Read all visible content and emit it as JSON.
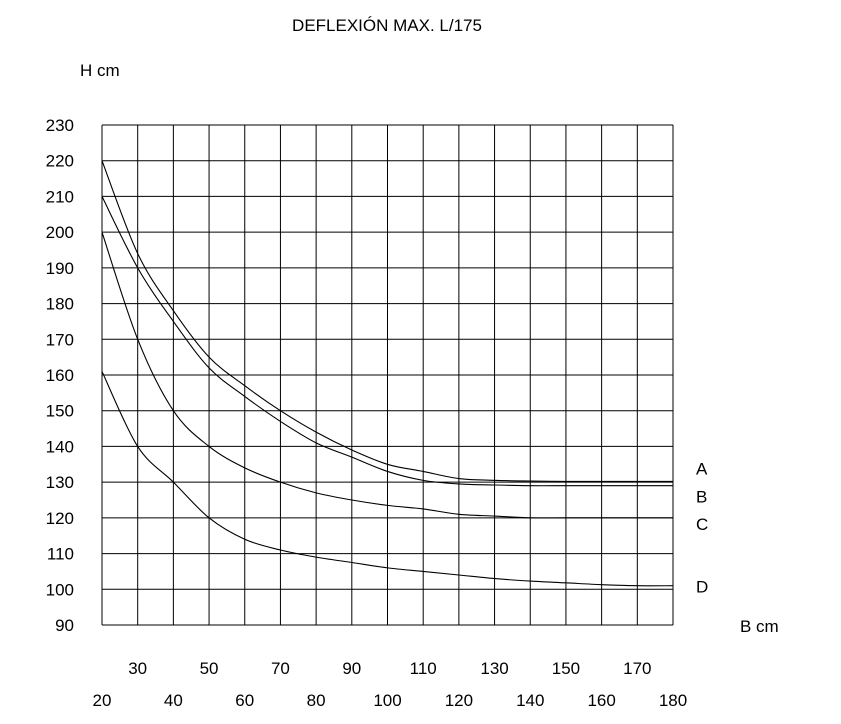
{
  "chart_data": {
    "type": "line",
    "title": "DEFLEXIÓN MAX. L/175",
    "xlabel": "B cm",
    "ylabel": "H cm",
    "xlim": [
      20,
      180
    ],
    "ylim": [
      90,
      230
    ],
    "x_ticks_upper": [
      30,
      50,
      70,
      90,
      110,
      130,
      150,
      170
    ],
    "x_ticks_lower": [
      20,
      40,
      60,
      80,
      100,
      120,
      140,
      160,
      180
    ],
    "y_ticks": [
      90,
      100,
      110,
      120,
      130,
      140,
      150,
      160,
      170,
      180,
      190,
      200,
      210,
      220,
      230
    ],
    "grid": true,
    "series": [
      {
        "name": "A",
        "x": [
          20,
          30,
          40,
          50,
          60,
          70,
          80,
          90,
          100,
          110,
          120,
          130,
          140,
          150,
          160,
          170,
          180
        ],
        "y": [
          220,
          194,
          178,
          165,
          157,
          150,
          144,
          139,
          135,
          133,
          131,
          130.5,
          130.3,
          130.2,
          130.2,
          130.2,
          130.2
        ]
      },
      {
        "name": "B",
        "x": [
          20,
          30,
          40,
          50,
          60,
          70,
          80,
          90,
          100,
          110,
          120,
          130,
          140,
          150,
          160,
          170,
          180
        ],
        "y": [
          210,
          190,
          175,
          162,
          154,
          147,
          141,
          137,
          133,
          130.5,
          129.5,
          129.2,
          129,
          129,
          129,
          129,
          129
        ]
      },
      {
        "name": "C",
        "x": [
          20,
          30,
          40,
          50,
          60,
          70,
          80,
          90,
          100,
          110,
          120,
          130,
          140,
          150,
          160,
          170,
          180
        ],
        "y": [
          200,
          170,
          150,
          140,
          134,
          130,
          127,
          125,
          123.5,
          122.5,
          121,
          120.5,
          120,
          120,
          120,
          120,
          120
        ]
      },
      {
        "name": "D",
        "x": [
          20,
          30,
          40,
          50,
          60,
          70,
          80,
          90,
          100,
          110,
          120,
          130,
          140,
          150,
          160,
          170,
          180
        ],
        "y": [
          161,
          140,
          130,
          120,
          114,
          111,
          109,
          107.5,
          106,
          105,
          104,
          103,
          102.3,
          101.8,
          101.3,
          101,
          101
        ]
      }
    ]
  }
}
